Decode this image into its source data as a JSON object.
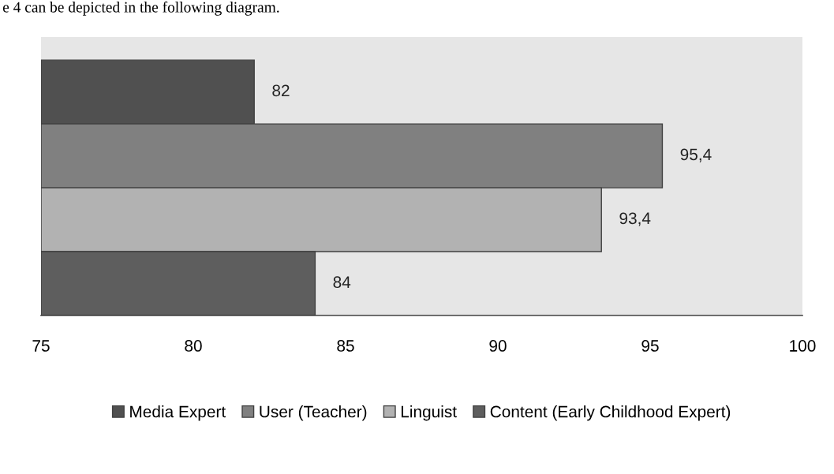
{
  "chart_data": {
    "type": "bar",
    "orientation": "horizontal",
    "categories": [
      null
    ],
    "series": [
      {
        "name": "Media Expert",
        "color": "#505050",
        "values": [
          82
        ],
        "value_labels": [
          "82"
        ]
      },
      {
        "name": "User (Teacher)",
        "color": "#808080",
        "values": [
          95.4
        ],
        "value_labels": [
          "95,4"
        ]
      },
      {
        "name": "Linguist",
        "color": "#b2b2b2",
        "values": [
          93.4
        ],
        "value_labels": [
          "93,4"
        ]
      },
      {
        "name": "Content (Early Childhood Expert)",
        "color": "#5e5e5e",
        "values": [
          84
        ],
        "value_labels": [
          "84"
        ]
      }
    ],
    "xlim": [
      75,
      100
    ],
    "xticks": [
      75,
      80,
      85,
      90,
      95,
      100
    ],
    "grid": false,
    "legend": "bottom",
    "annotations": [
      "e 4 can be depicted in the following diagram."
    ]
  }
}
